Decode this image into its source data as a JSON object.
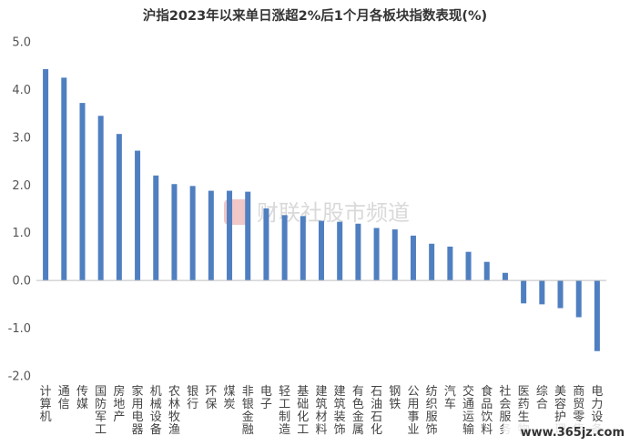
{
  "chart_data": {
    "type": "bar",
    "title": "沪指2023年以来单日涨超2%后1个月各板块指数表现(%)",
    "xlabel": "",
    "ylabel": "",
    "ylim": [
      -2.0,
      5.0
    ],
    "yticks": [
      "5.0",
      "4.0",
      "3.0",
      "2.0",
      "1.0",
      "0.0",
      "-1.0",
      "-2.0"
    ],
    "yticks_values": [
      5,
      4,
      3,
      2,
      1,
      0,
      -1,
      -2
    ],
    "grid": false,
    "legend": "none",
    "bar_color": "#4f7fc0",
    "categories": [
      "计算机",
      "通信",
      "传媒",
      "国防军工",
      "房地产",
      "家用电器",
      "机械设备",
      "农林牧渔",
      "银行",
      "环保",
      "煤炭",
      "非银金融",
      "电子",
      "轻工制造",
      "基础化工",
      "建筑材料",
      "建筑装饰",
      "有色金属",
      "石油石化",
      "钢铁",
      "公用事业",
      "纺织服饰",
      "汽车",
      "交通运输",
      "食品饮料",
      "社会服务",
      "医药生物",
      "综合",
      "美容护理",
      "商贸零售",
      "电力设备"
    ],
    "values": [
      4.43,
      4.25,
      3.72,
      3.45,
      3.07,
      2.72,
      2.2,
      2.02,
      1.98,
      1.88,
      1.88,
      1.86,
      1.51,
      1.37,
      1.35,
      1.25,
      1.23,
      1.19,
      1.1,
      1.07,
      0.94,
      0.77,
      0.71,
      0.6,
      0.39,
      0.16,
      -0.48,
      -0.5,
      -0.58,
      -0.77,
      -1.48
    ]
  },
  "watermark": {
    "text": "财联社股市频道",
    "logo_color": "#f2c7c7"
  },
  "site_mark": "www.365jz.com"
}
